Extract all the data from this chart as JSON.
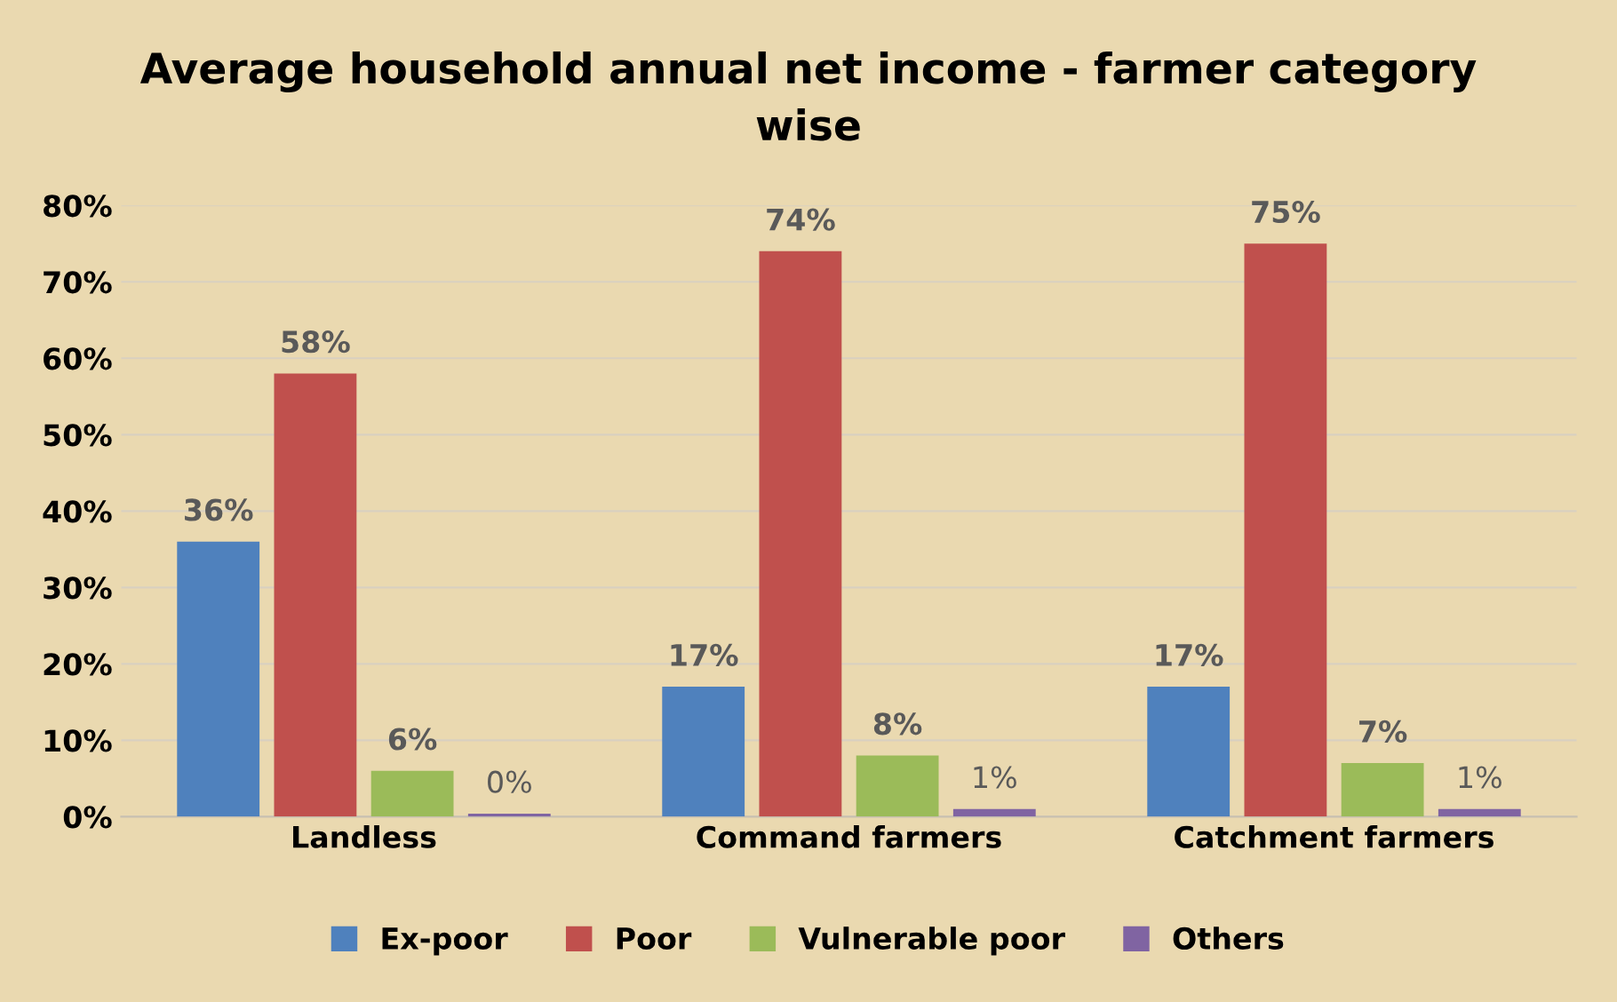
{
  "chart_data": {
    "type": "bar",
    "title": "Average household annual net income - farmer category\nwise",
    "categories": [
      "Landless",
      "Command farmers",
      "Catchment farmers"
    ],
    "series": [
      {
        "name": "Ex-poor",
        "color": "#4f81bd",
        "values": [
          36,
          17,
          17
        ],
        "value_labels": [
          "36%",
          "17%",
          "17%"
        ]
      },
      {
        "name": "Poor",
        "color": "#c0504d",
        "values": [
          58,
          74,
          75
        ],
        "value_labels": [
          "58%",
          "74%",
          "75%"
        ]
      },
      {
        "name": "Vulnerable poor",
        "color": "#9bbb59",
        "values": [
          6,
          8,
          7
        ],
        "value_labels": [
          "6%",
          "8%",
          "7%"
        ]
      },
      {
        "name": "Others",
        "color": "#8064a2",
        "values": [
          0.4,
          1,
          1
        ],
        "value_labels": [
          "0%",
          "1%",
          "1%"
        ]
      }
    ],
    "ylim": [
      0,
      80
    ],
    "yticks": [
      {
        "value": 0,
        "label": "0%"
      },
      {
        "value": 10,
        "label": "10%"
      },
      {
        "value": 20,
        "label": "20%"
      },
      {
        "value": 30,
        "label": "30%"
      },
      {
        "value": 40,
        "label": "40%"
      },
      {
        "value": 50,
        "label": "50%"
      },
      {
        "value": 60,
        "label": "60%"
      },
      {
        "value": 70,
        "label": "70%"
      },
      {
        "value": 80,
        "label": "80%"
      }
    ],
    "grid": "y",
    "legend": "bottom"
  }
}
